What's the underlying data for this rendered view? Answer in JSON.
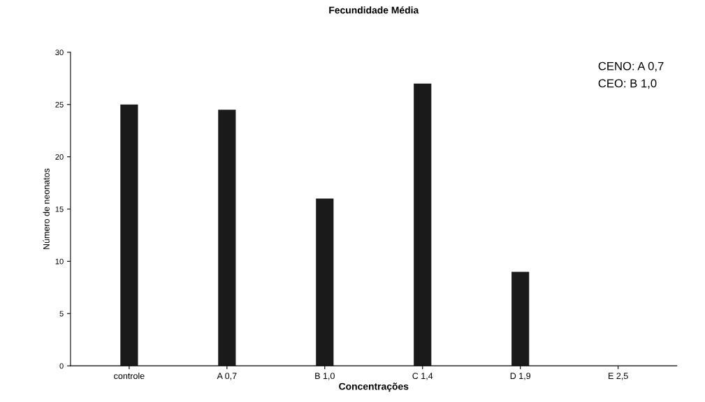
{
  "chart_data": {
    "type": "bar",
    "title": "Fecundidade Média",
    "xlabel": "Concentrações",
    "ylabel": "Número de neonatos",
    "categories": [
      "controle",
      "A 0,7",
      "B 1,0",
      "C 1,4",
      "D 1,9",
      "E 2,5"
    ],
    "values": [
      25,
      24.5,
      16,
      27,
      9,
      0
    ],
    "color": "#1a1a1a",
    "ylim": [
      0,
      30
    ],
    "yticks": [
      0,
      5,
      10,
      15,
      20,
      25,
      30
    ],
    "annotations": [
      "CENO: A 0,7",
      "CEO: B 1,0"
    ]
  }
}
